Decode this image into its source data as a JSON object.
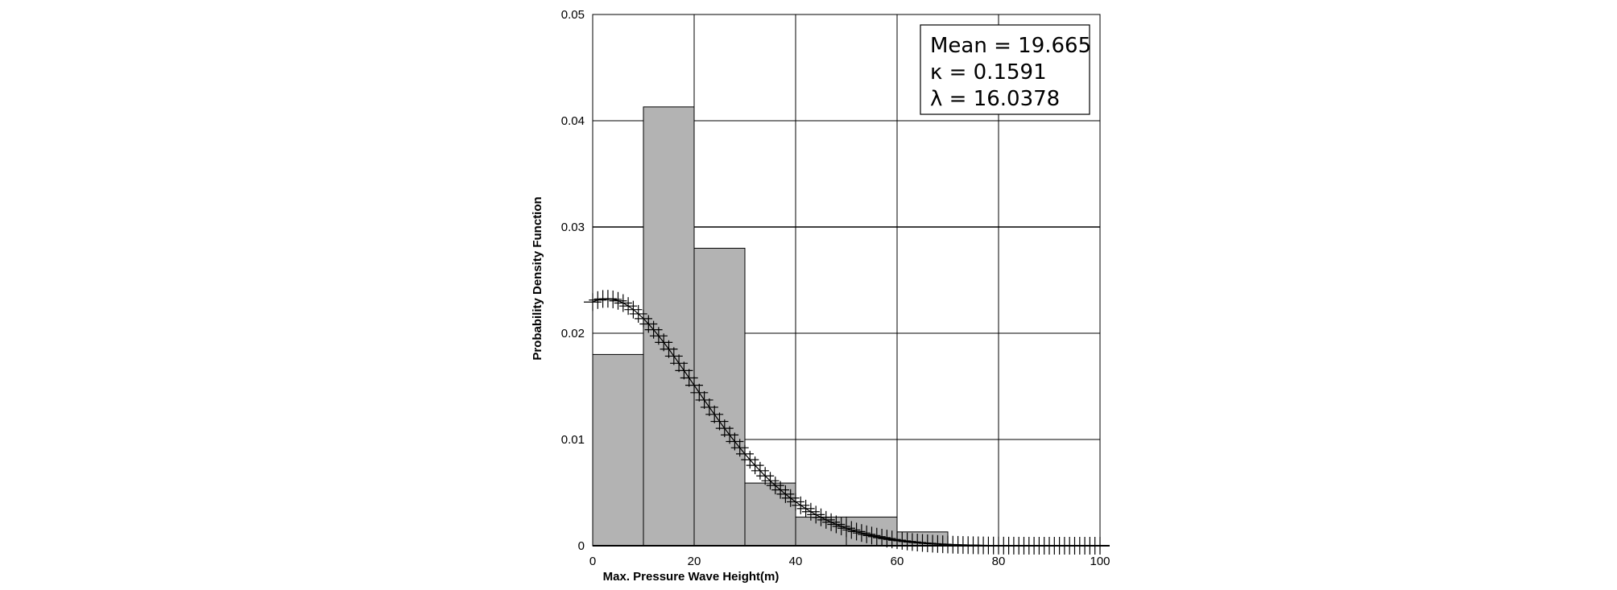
{
  "chart_data": {
    "type": "bar",
    "title": "",
    "xlabel": "Max. Pressure Wave Height(m)",
    "ylabel": "Probability Density Function",
    "xlim": [
      0,
      100
    ],
    "ylim": [
      0,
      0.05
    ],
    "x_ticks": [
      "0",
      "20",
      "40",
      "60",
      "80",
      "100"
    ],
    "y_ticks": [
      "0",
      "0.01",
      "0.02",
      "0.03",
      "0.04",
      "0.05"
    ],
    "grid": true,
    "bar_color": "#b3b3b3",
    "histogram": {
      "bin_edges": [
        0,
        10,
        20,
        30,
        40,
        50,
        60,
        70
      ],
      "values": [
        0.018,
        0.0413,
        0.028,
        0.0059,
        0.0027,
        0.0027,
        0.0013
      ]
    },
    "fitted_curve": {
      "k": 0.1591,
      "lambda": 16.0378,
      "x_range": [
        0,
        100
      ],
      "marker": "plus"
    },
    "info_box": {
      "line1": "Mean = 19.665",
      "line2": "κ = 0.1591",
      "line3": "λ = 16.0378",
      "placement": "top-right"
    }
  }
}
